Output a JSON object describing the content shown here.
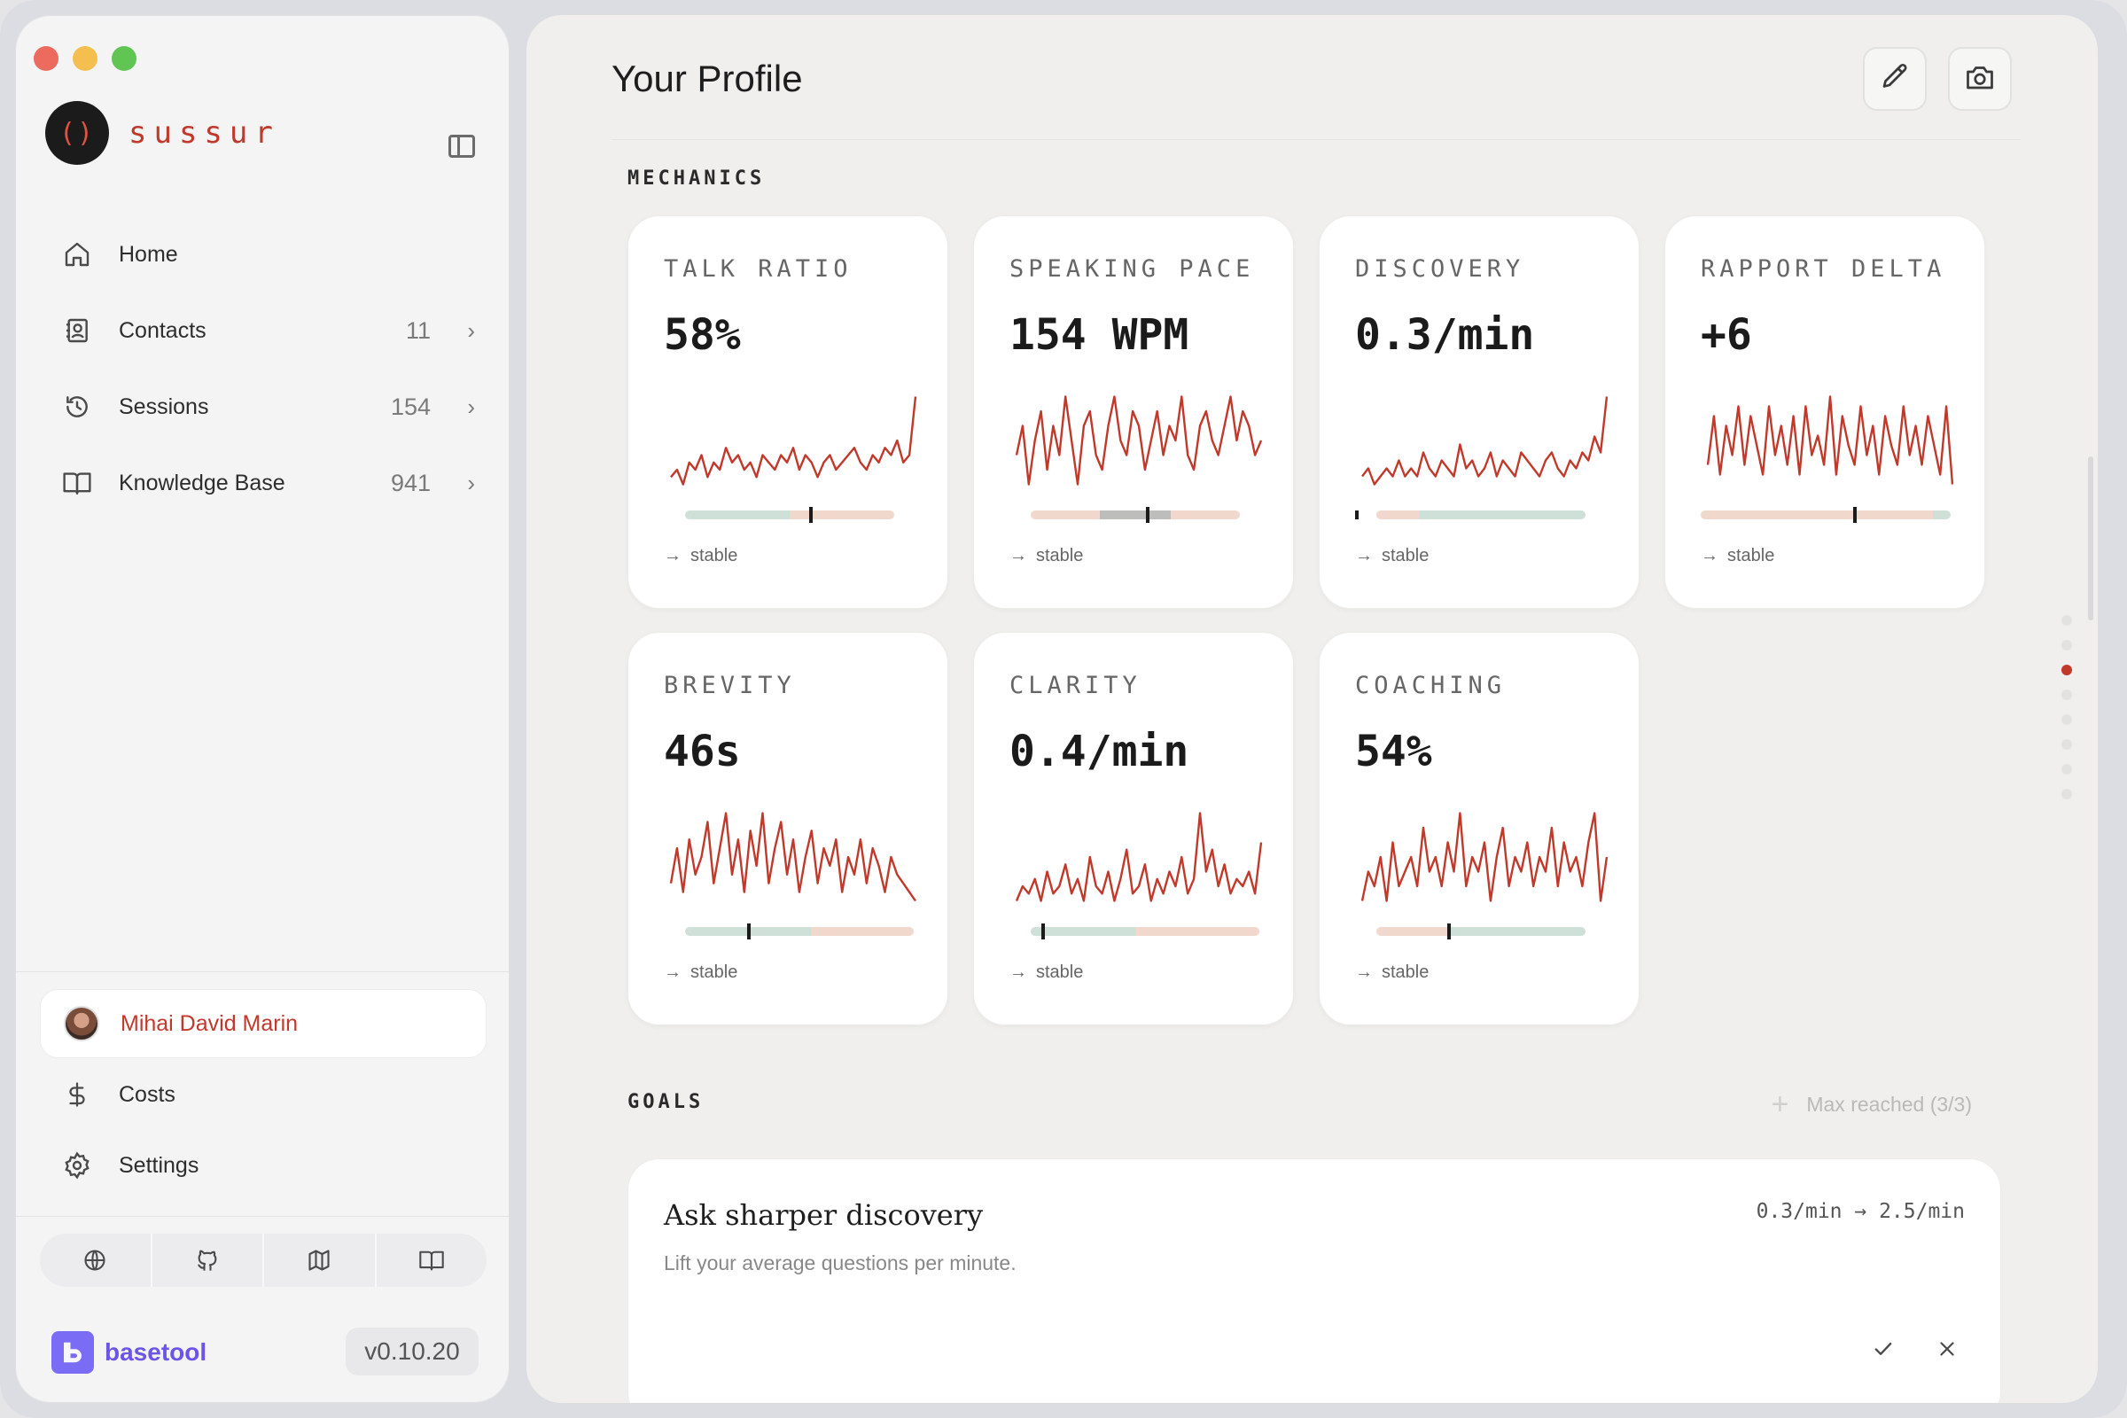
{
  "app": {
    "brand_name": "sussur",
    "brand_logo": "()",
    "accent_color": "#c0392b"
  },
  "sidebar": {
    "items": [
      {
        "label": "Home",
        "icon": "home-icon",
        "count": "",
        "chevron": false
      },
      {
        "label": "Contacts",
        "icon": "contacts-icon",
        "count": "11",
        "chevron": true
      },
      {
        "label": "Sessions",
        "icon": "history-icon",
        "count": "154",
        "chevron": true
      },
      {
        "label": "Knowledge Base",
        "icon": "book-icon",
        "count": "941",
        "chevron": true
      }
    ],
    "user": {
      "name": "Mihai David Marin"
    },
    "costs_label": "Costs",
    "settings_label": "Settings",
    "footer_icons": [
      "globe-icon",
      "github-icon",
      "map-icon",
      "docs-icon"
    ],
    "basetool_label": "basetool",
    "version": "v0.10.20"
  },
  "main": {
    "title": "Your Profile",
    "mechanics_label": "MECHANICS",
    "goals_label": "GOALS",
    "max_reached": "Max reached (3/3)",
    "metrics": [
      {
        "title": "TALK RATIO",
        "value": "58%",
        "trend": "stable",
        "series": [
          3,
          4,
          2,
          5,
          4,
          6,
          3,
          5,
          4,
          7,
          5,
          6,
          4,
          5,
          3,
          6,
          5,
          4,
          6,
          5,
          7,
          4,
          6,
          5,
          3,
          5,
          6,
          4,
          5,
          6,
          7,
          5,
          4,
          6,
          5,
          7,
          6,
          8,
          5,
          6,
          14
        ]
      },
      {
        "title": "SPEAKING PACE",
        "value": "154 WPM",
        "trend": "stable",
        "series": [
          10,
          12,
          8,
          11,
          13,
          9,
          12,
          10,
          14,
          11,
          8,
          12,
          13,
          10,
          9,
          12,
          14,
          11,
          10,
          13,
          12,
          9,
          11,
          13,
          10,
          12,
          11,
          14,
          10,
          9,
          12,
          13,
          11,
          10,
          12,
          14,
          11,
          13,
          12,
          10,
          11
        ]
      },
      {
        "title": "DISCOVERY",
        "value": "0.3/min",
        "trend": "stable",
        "series": [
          2,
          3,
          1,
          2,
          3,
          2,
          4,
          2,
          3,
          2,
          5,
          3,
          2,
          4,
          3,
          2,
          6,
          3,
          4,
          2,
          3,
          5,
          2,
          4,
          3,
          2,
          5,
          4,
          3,
          2,
          4,
          5,
          3,
          2,
          4,
          3,
          5,
          4,
          7,
          5,
          12
        ]
      },
      {
        "title": "RAPPORT DELTA",
        "value": "+6",
        "trend": "stable",
        "series": [
          4,
          9,
          3,
          8,
          5,
          10,
          4,
          9,
          6,
          3,
          10,
          5,
          8,
          4,
          9,
          3,
          10,
          5,
          7,
          4,
          11,
          3,
          9,
          6,
          4,
          10,
          5,
          8,
          3,
          9,
          6,
          4,
          10,
          5,
          8,
          4,
          9,
          6,
          3,
          10,
          2
        ]
      },
      {
        "title": "BREVITY",
        "value": "46s",
        "trend": "stable",
        "series": [
          5,
          9,
          4,
          10,
          6,
          8,
          12,
          5,
          9,
          13,
          6,
          10,
          4,
          11,
          7,
          13,
          5,
          9,
          12,
          6,
          10,
          4,
          8,
          11,
          5,
          9,
          7,
          10,
          4,
          8,
          6,
          10,
          5,
          9,
          7,
          4,
          8,
          6,
          5,
          4,
          3
        ]
      },
      {
        "title": "CLARITY",
        "value": "0.4/min",
        "trend": "stable",
        "series": [
          2,
          4,
          3,
          5,
          2,
          6,
          3,
          4,
          7,
          3,
          5,
          2,
          8,
          4,
          3,
          6,
          2,
          5,
          9,
          3,
          4,
          7,
          2,
          5,
          3,
          6,
          4,
          8,
          3,
          5,
          14,
          6,
          9,
          4,
          7,
          3,
          5,
          4,
          6,
          3,
          10
        ]
      },
      {
        "title": "COACHING",
        "value": "54%",
        "trend": "stable",
        "series": [
          3,
          5,
          4,
          6,
          3,
          7,
          4,
          5,
          6,
          4,
          8,
          5,
          6,
          4,
          7,
          5,
          9,
          4,
          6,
          5,
          7,
          3,
          6,
          8,
          4,
          6,
          5,
          7,
          4,
          6,
          5,
          8,
          4,
          7,
          5,
          6,
          4,
          7,
          9,
          3,
          6
        ]
      }
    ],
    "goal": {
      "title": "Ask sharper discovery",
      "description": "Lift your average questions per minute.",
      "metric": "0.3/min → 2.5/min"
    }
  }
}
